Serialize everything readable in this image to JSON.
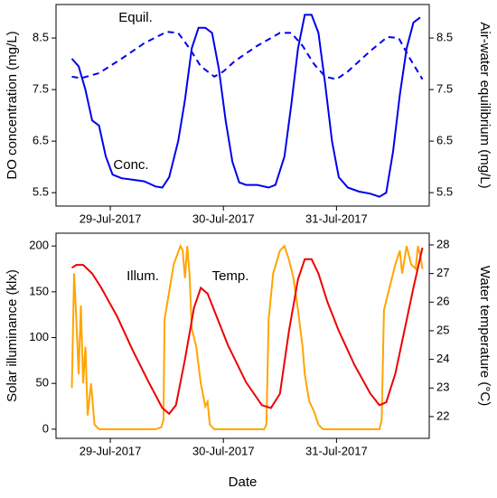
{
  "chart_data": [
    {
      "type": "line",
      "ylabel": "DO concentration (mg/L)",
      "y2label": "Air-water equilibrium (mg/L)",
      "xlim": [
        28.52,
        31.82
      ],
      "xticks": [
        {
          "value": 29,
          "label": "29-Jul-2017"
        },
        {
          "value": 30,
          "label": "30-Jul-2017"
        },
        {
          "value": 31,
          "label": "31-Jul-2017"
        }
      ],
      "ylim": [
        5.24,
        9.15
      ],
      "yticks": [
        5.5,
        6.5,
        7.5,
        8.5
      ],
      "y2lim": [
        5.24,
        9.15
      ],
      "y2ticks": [
        5.5,
        6.5,
        7.5,
        8.5
      ],
      "series": [
        {
          "name": "Conc.",
          "color": "#0000ee",
          "linestyle": "solid",
          "x": [
            28.66,
            28.72,
            28.78,
            28.84,
            28.9,
            28.96,
            29.02,
            29.1,
            29.2,
            29.3,
            29.4,
            29.46,
            29.52,
            29.6,
            29.66,
            29.72,
            29.78,
            29.84,
            29.9,
            29.96,
            30.02,
            30.08,
            30.14,
            30.2,
            30.3,
            30.4,
            30.46,
            30.54,
            30.6,
            30.66,
            30.72,
            30.78,
            30.84,
            30.9,
            30.96,
            31.02,
            31.1,
            31.2,
            31.3,
            31.38,
            31.44,
            31.5,
            31.56,
            31.62,
            31.68,
            31.74
          ],
          "values": [
            8.1,
            7.95,
            7.5,
            6.9,
            6.8,
            6.2,
            5.85,
            5.78,
            5.75,
            5.72,
            5.62,
            5.6,
            5.8,
            6.5,
            7.3,
            8.3,
            8.7,
            8.7,
            8.6,
            7.9,
            6.9,
            6.1,
            5.7,
            5.65,
            5.65,
            5.6,
            5.65,
            6.2,
            7.2,
            8.3,
            8.95,
            8.95,
            8.6,
            7.6,
            6.5,
            5.8,
            5.6,
            5.52,
            5.48,
            5.42,
            5.5,
            6.3,
            7.4,
            8.3,
            8.8,
            8.9
          ]
        },
        {
          "name": "Equil.",
          "color": "#0000ee",
          "linestyle": "dashed",
          "axis": "y2",
          "x": [
            28.66,
            28.74,
            28.9,
            29.1,
            29.3,
            29.5,
            29.6,
            29.7,
            29.8,
            29.92,
            30.0,
            30.1,
            30.3,
            30.5,
            30.6,
            30.7,
            30.8,
            30.9,
            31.0,
            31.1,
            31.3,
            31.45,
            31.55,
            31.65,
            31.76
          ],
          "values": [
            7.75,
            7.72,
            7.82,
            8.1,
            8.4,
            8.62,
            8.6,
            8.3,
            7.95,
            7.75,
            7.85,
            8.05,
            8.35,
            8.6,
            8.6,
            8.35,
            8.0,
            7.75,
            7.7,
            7.85,
            8.25,
            8.52,
            8.5,
            8.1,
            7.7
          ]
        }
      ]
    },
    {
      "type": "line",
      "ylabel": "Solar illuminance (klx)",
      "y2label": "Water temperature (°C)",
      "xlabel": "Date",
      "xlim": [
        28.52,
        31.82
      ],
      "xticks": [
        {
          "value": 29,
          "label": "29-Jul-2017"
        },
        {
          "value": 30,
          "label": "30-Jul-2017"
        },
        {
          "value": 31,
          "label": "31-Jul-2017"
        }
      ],
      "ylim": [
        -10,
        214
      ],
      "yticks": [
        0,
        50,
        100,
        150,
        200
      ],
      "y2lim": [
        21.24,
        28.41
      ],
      "y2ticks": [
        22,
        23,
        24,
        25,
        26,
        27,
        28
      ],
      "series": [
        {
          "name": "Illum.",
          "color": "#ffa500",
          "linestyle": "solid",
          "x": [
            28.66,
            28.68,
            28.7,
            28.72,
            28.74,
            28.76,
            28.78,
            28.8,
            28.83,
            28.86,
            28.9,
            29.0,
            29.2,
            29.4,
            29.45,
            29.47,
            29.48,
            29.52,
            29.56,
            29.62,
            29.64,
            29.66,
            29.68,
            29.7,
            29.72,
            29.76,
            29.8,
            29.84,
            29.86,
            29.88,
            29.92,
            30.0,
            30.2,
            30.36,
            30.38,
            30.4,
            30.44,
            30.5,
            30.54,
            30.58,
            30.62,
            30.66,
            30.7,
            30.72,
            30.76,
            30.8,
            30.84,
            30.88,
            31.0,
            31.3,
            31.38,
            31.4,
            31.42,
            31.46,
            31.52,
            31.56,
            31.58,
            31.62,
            31.66,
            31.7,
            31.72,
            31.74,
            31.76
          ],
          "values": [
            45,
            170,
            120,
            60,
            135,
            50,
            90,
            15,
            50,
            5,
            0,
            0,
            0,
            0,
            2,
            10,
            120,
            150,
            180,
            200,
            195,
            165,
            200,
            170,
            110,
            90,
            50,
            25,
            30,
            5,
            0,
            0,
            0,
            0,
            5,
            120,
            170,
            195,
            200,
            185,
            165,
            130,
            90,
            60,
            30,
            20,
            5,
            0,
            0,
            0,
            0,
            10,
            130,
            150,
            180,
            195,
            170,
            200,
            180,
            175,
            200,
            190,
            175
          ]
        },
        {
          "name": "Temp.",
          "color": "#ee0000",
          "linestyle": "solid",
          "axis": "y2",
          "x": [
            28.66,
            28.7,
            28.76,
            28.84,
            28.92,
            29.06,
            29.2,
            29.34,
            29.46,
            29.52,
            29.58,
            29.66,
            29.74,
            29.8,
            29.86,
            29.94,
            30.04,
            30.2,
            30.34,
            30.42,
            30.5,
            30.58,
            30.66,
            30.72,
            30.78,
            30.84,
            30.92,
            31.02,
            31.16,
            31.3,
            31.38,
            31.44,
            31.52,
            31.6,
            31.68,
            31.76
          ],
          "values": [
            27.2,
            27.3,
            27.3,
            27.0,
            26.5,
            25.5,
            24.3,
            23.2,
            22.3,
            22.1,
            22.4,
            24.0,
            25.8,
            26.5,
            26.3,
            25.5,
            24.5,
            23.2,
            22.4,
            22.3,
            22.8,
            25.0,
            26.8,
            27.5,
            27.5,
            27.0,
            26.0,
            25.0,
            23.8,
            22.8,
            22.4,
            22.5,
            23.5,
            25.0,
            26.5,
            27.9
          ]
        }
      ]
    }
  ]
}
